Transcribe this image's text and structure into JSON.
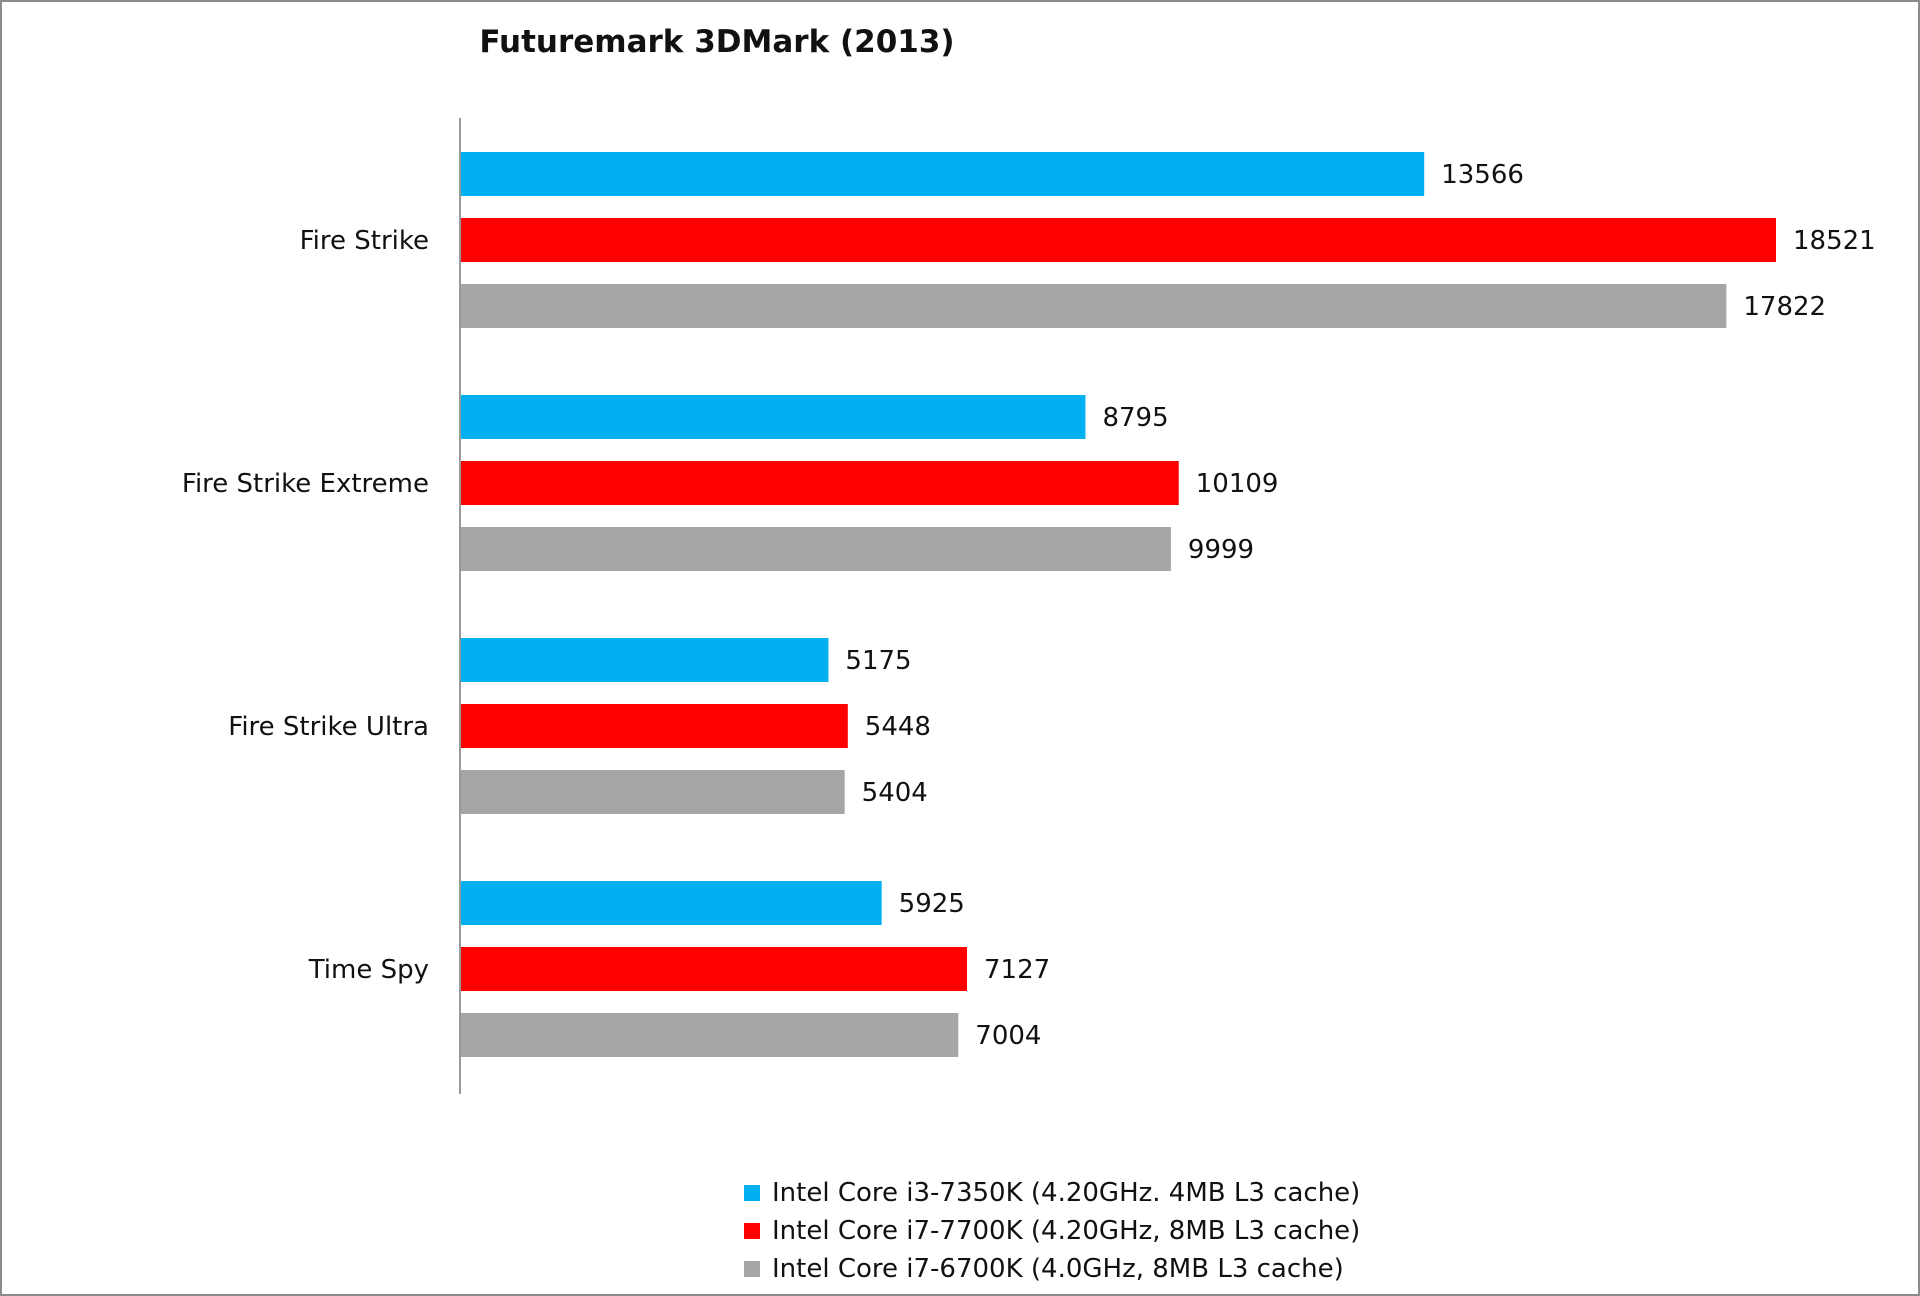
{
  "chart_data": {
    "type": "bar",
    "orientation": "horizontal",
    "title": "Futuremark 3DMark (2013)",
    "categories": [
      "Fire Strike",
      "Fire Strike Extreme",
      "Fire Strike Ultra",
      "Time Spy"
    ],
    "series": [
      {
        "name": "Intel Core i3-7350K (4.20GHz. 4MB L3 cache)",
        "color": "#00b0f0",
        "values": [
          13566,
          8795,
          5175,
          5925
        ]
      },
      {
        "name": "Intel Core i7-7700K (4.20GHz, 8MB L3 cache)",
        "color": "#ff0000",
        "values": [
          18521,
          10109,
          5448,
          7127
        ]
      },
      {
        "name": "Intel Core i7-6700K (4.0GHz, 8MB L3 cache)",
        "color": "#a6a6a6",
        "values": [
          17822,
          9999,
          5404,
          7004
        ]
      }
    ],
    "xlim": [
      0,
      18521
    ],
    "data_labels": true,
    "grid": false,
    "legend": "bottom"
  }
}
